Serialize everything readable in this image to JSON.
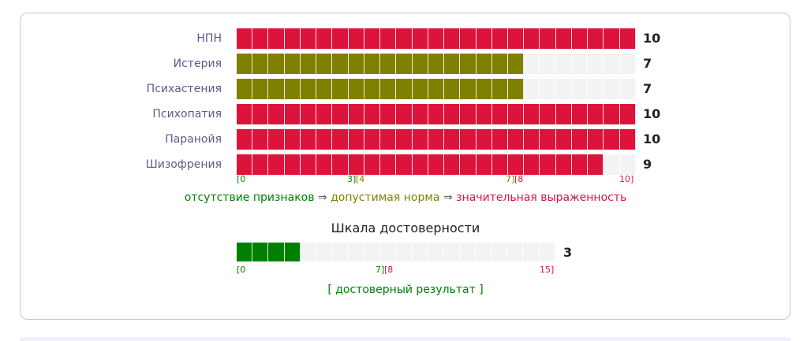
{
  "main": {
    "rows": [
      {
        "label": "НПН",
        "value": "10",
        "score": 10,
        "color": "#dc143c"
      },
      {
        "label": "Истерия",
        "value": "7",
        "score": 7,
        "color": "#808000"
      },
      {
        "label": "Психастения",
        "value": "7",
        "score": 7,
        "color": "#808000"
      },
      {
        "label": "Психопатия",
        "value": "10",
        "score": 10,
        "color": "#dc143c"
      },
      {
        "label": "Паранойя",
        "value": "10",
        "score": 10,
        "color": "#dc143c"
      },
      {
        "label": "Шизофрения",
        "value": "9",
        "score": 9,
        "color": "#dc143c"
      }
    ],
    "max": 10,
    "segments": 25,
    "ticks": {
      "t0": "[0",
      "t3": "3]",
      "t4": "[4",
      "t7": "7]",
      "t8": "[8",
      "t10": "10]"
    },
    "legend": {
      "absent": "отсутствие признаков",
      "arrow1": " ⇒ ",
      "normal": "допустимая норма",
      "arrow2": " ⇒ ",
      "significant": "значительная выраженность"
    }
  },
  "reliability": {
    "title": "Шкала достоверности",
    "value": "3",
    "score": 3,
    "max": 15,
    "segments": 20,
    "color": "#008000",
    "ticks": {
      "t0": "[0",
      "t7": "7]",
      "t8": "[8",
      "t15": "15]"
    },
    "result": "[ достоверный результат ]"
  },
  "colors": {
    "green": "#008000",
    "olive": "#808000",
    "crimson": "#dc143c",
    "empty": "#f3f3f3",
    "label": "#5b5b8a"
  }
}
